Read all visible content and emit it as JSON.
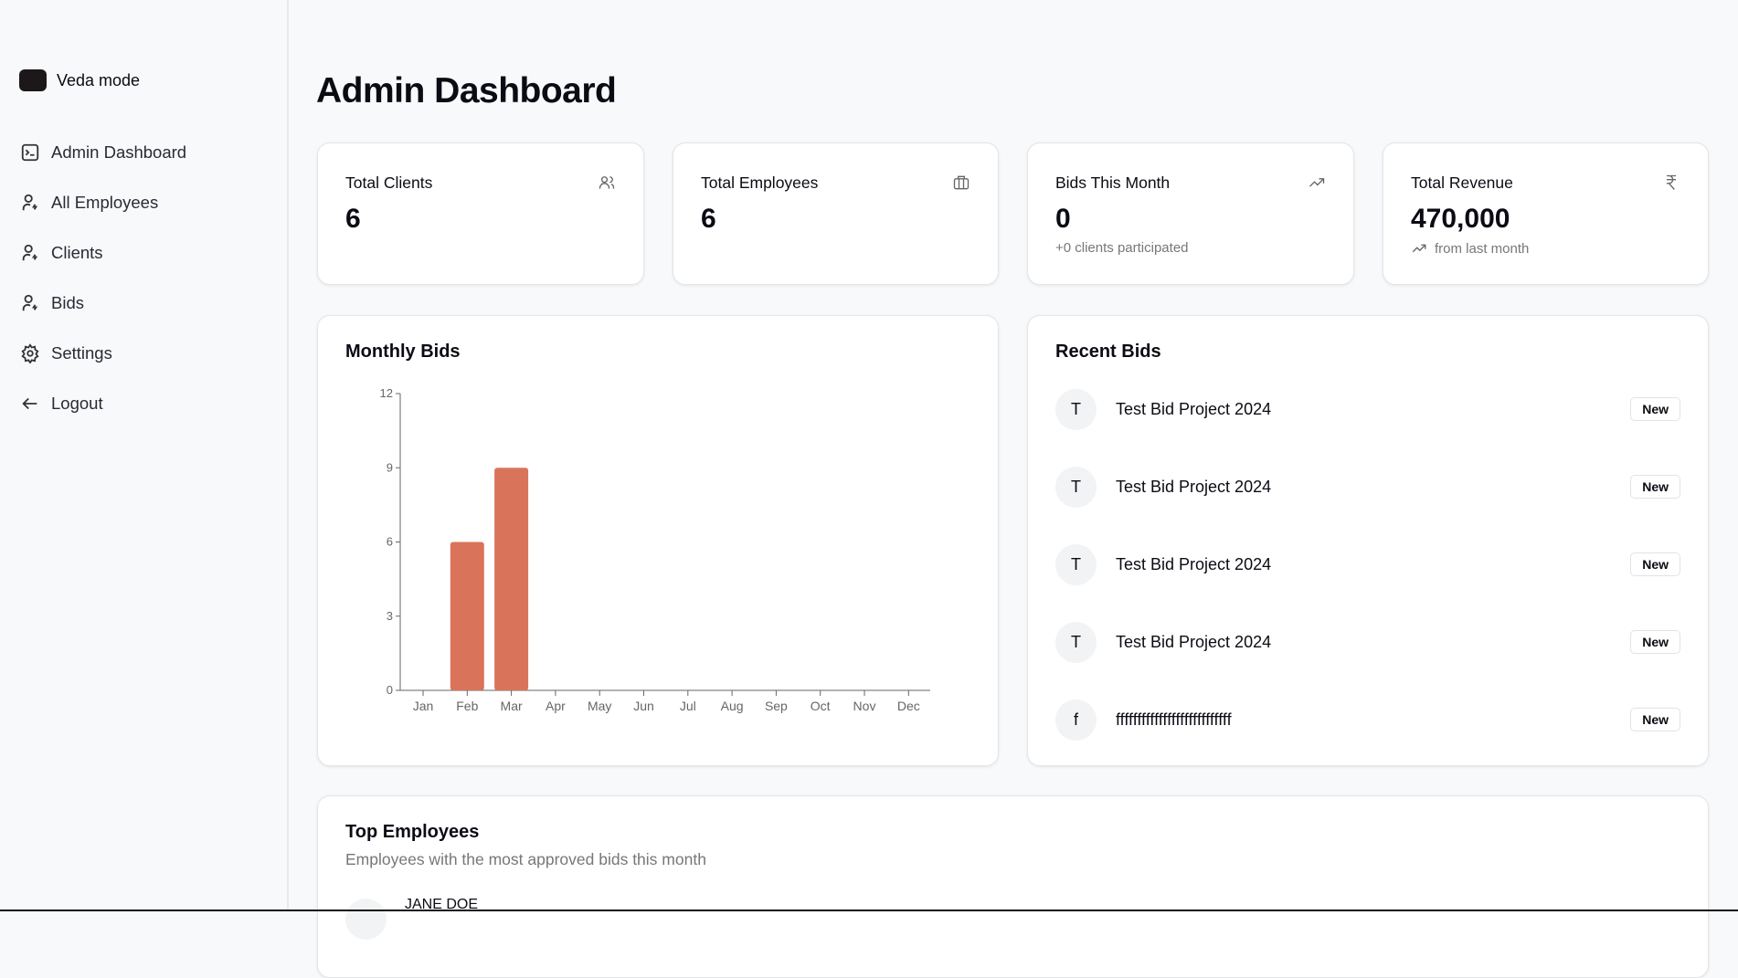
{
  "sidebar": {
    "brand": "Veda mode",
    "items": [
      {
        "label": "Admin Dashboard",
        "icon": "terminal-square-icon"
      },
      {
        "label": "All Employees",
        "icon": "user-bolt-icon"
      },
      {
        "label": "Clients",
        "icon": "user-bolt-icon"
      },
      {
        "label": "Bids",
        "icon": "user-bolt-icon"
      },
      {
        "label": "Settings",
        "icon": "gear-icon"
      },
      {
        "label": "Logout",
        "icon": "arrow-left-icon"
      }
    ]
  },
  "header": {
    "title": "Admin Dashboard"
  },
  "stats": [
    {
      "label": "Total Clients",
      "value": "6",
      "icon": "users-icon"
    },
    {
      "label": "Total Employees",
      "value": "6",
      "icon": "briefcase-icon"
    },
    {
      "label": "Bids This Month",
      "value": "0",
      "sub": "+0 clients participated",
      "icon": "trending-up-icon"
    },
    {
      "label": "Total Revenue",
      "value": "470,000",
      "sub": "from last month",
      "icon": "rupee-icon"
    }
  ],
  "monthly": {
    "title": "Monthly Bids"
  },
  "chart_data": {
    "type": "bar",
    "title": "Monthly Bids",
    "categories": [
      "Jan",
      "Feb",
      "Mar",
      "Apr",
      "May",
      "Jun",
      "Jul",
      "Aug",
      "Sep",
      "Oct",
      "Nov",
      "Dec"
    ],
    "values": [
      0,
      6,
      9,
      0,
      0,
      0,
      0,
      0,
      0,
      0,
      0,
      0
    ],
    "yticks": [
      "0",
      "3",
      "6",
      "9",
      "12"
    ],
    "ylim": [
      0,
      12
    ],
    "grid": false,
    "color": "#d9745a"
  },
  "recent": {
    "title": "Recent Bids",
    "items": [
      {
        "initial": "T",
        "title": "Test Bid Project 2024",
        "status": "New"
      },
      {
        "initial": "T",
        "title": "Test Bid Project 2024",
        "status": "New"
      },
      {
        "initial": "T",
        "title": "Test Bid Project 2024",
        "status": "New"
      },
      {
        "initial": "T",
        "title": "Test Bid Project 2024",
        "status": "New"
      },
      {
        "initial": "f",
        "title": "fffffffffffffffffffffffffff",
        "status": "New"
      }
    ]
  },
  "top": {
    "title": "Top Employees",
    "subtitle": "Employees with the most approved bids this month",
    "items": [
      {
        "name": "JANE DOE"
      }
    ]
  }
}
